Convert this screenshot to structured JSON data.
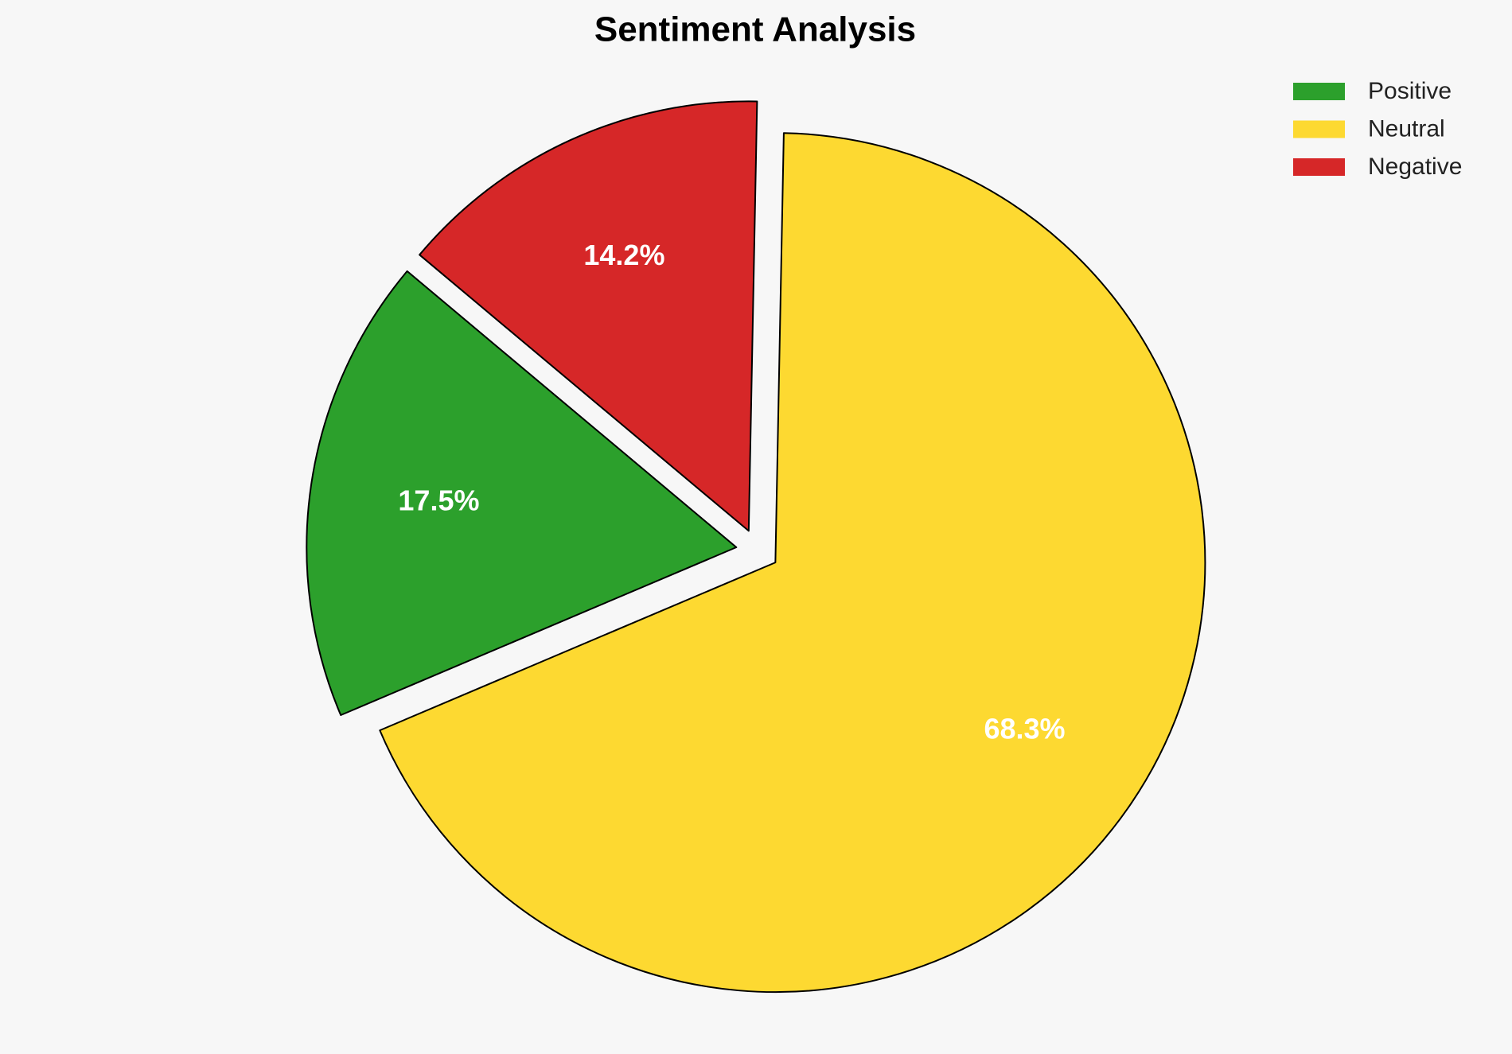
{
  "chart_data": {
    "type": "pie",
    "title": "Sentiment Analysis",
    "categories": [
      "Positive",
      "Neutral",
      "Negative"
    ],
    "values": [
      17.5,
      68.3,
      14.2
    ],
    "value_labels": [
      "17.5%",
      "68.3%",
      "14.2%"
    ],
    "colors": [
      "#2ca02c",
      "#fdd931",
      "#d62728"
    ],
    "legend": "upper right"
  }
}
